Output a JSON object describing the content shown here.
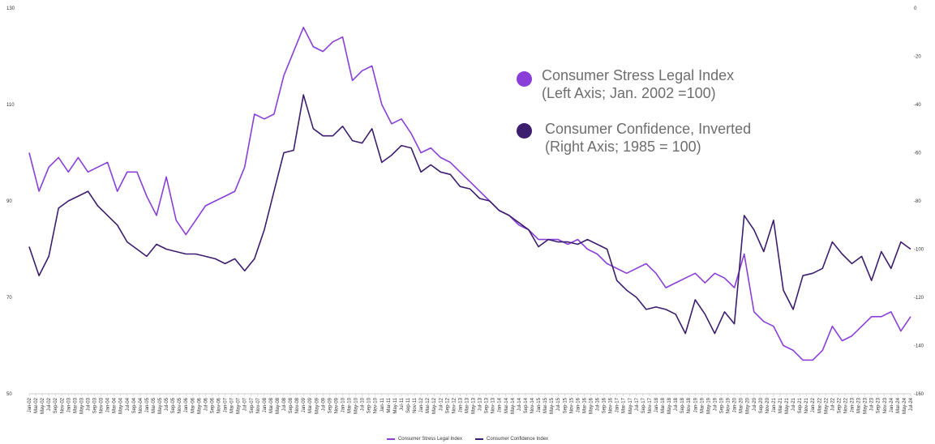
{
  "colors": {
    "stress": "#8a3fd9",
    "confidence": "#3d1d6e",
    "axis": "#333333"
  },
  "annotations": {
    "stress_line1": "Consumer Stress Legal Index",
    "stress_line2": "(Left Axis; Jan. 2002 =100)",
    "confidence_line1": "Consumer Confidence, Inverted",
    "confidence_line2": "(Right Axis; 1985 = 100)"
  },
  "legend": {
    "stress": "Consumer Stress Legal Index",
    "confidence": "Consumer Confidence Index"
  },
  "chart_data": {
    "type": "line",
    "x_start": "2002-01",
    "x_end": "2024-07",
    "x_tick_every_months": 2,
    "left_axis": {
      "min": 50,
      "max": 130,
      "ticks": [
        50,
        70,
        90,
        110,
        130
      ]
    },
    "right_axis": {
      "min": -160,
      "max": 0,
      "ticks": [
        -160,
        -140,
        -120,
        -100,
        -80,
        -60,
        -40,
        -20,
        0
      ],
      "inverted_series": true
    },
    "grid": false,
    "legend_position": "bottom",
    "series": [
      {
        "name": "Consumer Stress Legal Index",
        "axis": "left",
        "points": [
          [
            "2002-01",
            100
          ],
          [
            "2002-04",
            92
          ],
          [
            "2002-07",
            97
          ],
          [
            "2002-10",
            99
          ],
          [
            "2003-01",
            96
          ],
          [
            "2003-04",
            99
          ],
          [
            "2003-07",
            96
          ],
          [
            "2003-10",
            97
          ],
          [
            "2004-01",
            98
          ],
          [
            "2004-04",
            92
          ],
          [
            "2004-07",
            96
          ],
          [
            "2004-10",
            96
          ],
          [
            "2005-01",
            91
          ],
          [
            "2005-04",
            87
          ],
          [
            "2005-07",
            95
          ],
          [
            "2005-10",
            86
          ],
          [
            "2006-01",
            83
          ],
          [
            "2006-04",
            86
          ],
          [
            "2006-07",
            89
          ],
          [
            "2006-10",
            90
          ],
          [
            "2007-01",
            91
          ],
          [
            "2007-04",
            92
          ],
          [
            "2007-07",
            97
          ],
          [
            "2007-10",
            108
          ],
          [
            "2008-01",
            107
          ],
          [
            "2008-04",
            108
          ],
          [
            "2008-07",
            116
          ],
          [
            "2008-10",
            121
          ],
          [
            "2009-01",
            126
          ],
          [
            "2009-04",
            122
          ],
          [
            "2009-07",
            121
          ],
          [
            "2009-10",
            123
          ],
          [
            "2010-01",
            124
          ],
          [
            "2010-04",
            115
          ],
          [
            "2010-07",
            117
          ],
          [
            "2010-10",
            118
          ],
          [
            "2011-01",
            110
          ],
          [
            "2011-04",
            106
          ],
          [
            "2011-07",
            107
          ],
          [
            "2011-10",
            104
          ],
          [
            "2012-01",
            100
          ],
          [
            "2012-04",
            101
          ],
          [
            "2012-07",
            99
          ],
          [
            "2012-10",
            98
          ],
          [
            "2013-01",
            96
          ],
          [
            "2013-04",
            94
          ],
          [
            "2013-07",
            92
          ],
          [
            "2013-10",
            90
          ],
          [
            "2014-01",
            88
          ],
          [
            "2014-04",
            87
          ],
          [
            "2014-07",
            85
          ],
          [
            "2014-10",
            84
          ],
          [
            "2015-01",
            82
          ],
          [
            "2015-04",
            82
          ],
          [
            "2015-07",
            82
          ],
          [
            "2015-10",
            81
          ],
          [
            "2016-01",
            82
          ],
          [
            "2016-04",
            80
          ],
          [
            "2016-07",
            79
          ],
          [
            "2016-10",
            77
          ],
          [
            "2017-01",
            76
          ],
          [
            "2017-04",
            75
          ],
          [
            "2017-07",
            76
          ],
          [
            "2017-10",
            77
          ],
          [
            "2018-01",
            75
          ],
          [
            "2018-04",
            72
          ],
          [
            "2018-07",
            73
          ],
          [
            "2018-10",
            74
          ],
          [
            "2019-01",
            75
          ],
          [
            "2019-04",
            73
          ],
          [
            "2019-07",
            75
          ],
          [
            "2019-10",
            74
          ],
          [
            "2020-01",
            72
          ],
          [
            "2020-04",
            79
          ],
          [
            "2020-07",
            67
          ],
          [
            "2020-10",
            65
          ],
          [
            "2021-01",
            64
          ],
          [
            "2021-04",
            60
          ],
          [
            "2021-07",
            59
          ],
          [
            "2021-10",
            57
          ],
          [
            "2022-01",
            57
          ],
          [
            "2022-04",
            59
          ],
          [
            "2022-07",
            64
          ],
          [
            "2022-10",
            61
          ],
          [
            "2023-01",
            62
          ],
          [
            "2023-04",
            64
          ],
          [
            "2023-07",
            66
          ],
          [
            "2023-10",
            66
          ],
          [
            "2024-01",
            67
          ],
          [
            "2024-04",
            63
          ],
          [
            "2024-07",
            66
          ]
        ]
      },
      {
        "name": "Consumer Confidence Index",
        "axis": "right",
        "inverted": true,
        "points": [
          [
            "2002-01",
            99
          ],
          [
            "2002-04",
            111
          ],
          [
            "2002-07",
            103
          ],
          [
            "2002-10",
            83
          ],
          [
            "2003-01",
            80
          ],
          [
            "2003-04",
            78
          ],
          [
            "2003-07",
            76
          ],
          [
            "2003-10",
            82
          ],
          [
            "2004-01",
            86
          ],
          [
            "2004-04",
            90
          ],
          [
            "2004-07",
            97
          ],
          [
            "2004-10",
            100
          ],
          [
            "2005-01",
            103
          ],
          [
            "2005-04",
            98
          ],
          [
            "2005-07",
            100
          ],
          [
            "2005-10",
            101
          ],
          [
            "2006-01",
            102
          ],
          [
            "2006-04",
            102
          ],
          [
            "2006-07",
            103
          ],
          [
            "2006-10",
            104
          ],
          [
            "2007-01",
            106
          ],
          [
            "2007-04",
            104
          ],
          [
            "2007-07",
            109
          ],
          [
            "2007-10",
            104
          ],
          [
            "2008-01",
            92
          ],
          [
            "2008-04",
            76
          ],
          [
            "2008-07",
            60
          ],
          [
            "2008-10",
            59
          ],
          [
            "2009-01",
            36
          ],
          [
            "2009-04",
            50
          ],
          [
            "2009-07",
            53
          ],
          [
            "2009-10",
            53
          ],
          [
            "2010-01",
            49
          ],
          [
            "2010-04",
            55
          ],
          [
            "2010-07",
            56
          ],
          [
            "2010-10",
            50
          ],
          [
            "2011-01",
            64
          ],
          [
            "2011-04",
            61
          ],
          [
            "2011-07",
            57
          ],
          [
            "2011-10",
            58
          ],
          [
            "2012-01",
            68
          ],
          [
            "2012-04",
            65
          ],
          [
            "2012-07",
            68
          ],
          [
            "2012-10",
            69
          ],
          [
            "2013-01",
            74
          ],
          [
            "2013-04",
            75
          ],
          [
            "2013-07",
            79
          ],
          [
            "2013-10",
            80
          ],
          [
            "2014-01",
            84
          ],
          [
            "2014-04",
            86
          ],
          [
            "2014-07",
            89
          ],
          [
            "2014-10",
            92
          ],
          [
            "2015-01",
            99
          ],
          [
            "2015-04",
            96
          ],
          [
            "2015-07",
            97
          ],
          [
            "2015-10",
            97
          ],
          [
            "2016-01",
            98
          ],
          [
            "2016-04",
            96
          ],
          [
            "2016-07",
            98
          ],
          [
            "2016-10",
            100
          ],
          [
            "2017-01",
            113
          ],
          [
            "2017-04",
            117
          ],
          [
            "2017-07",
            120
          ],
          [
            "2017-10",
            125
          ],
          [
            "2018-01",
            124
          ],
          [
            "2018-04",
            125
          ],
          [
            "2018-07",
            127
          ],
          [
            "2018-10",
            135
          ],
          [
            "2019-01",
            121
          ],
          [
            "2019-04",
            127
          ],
          [
            "2019-07",
            135
          ],
          [
            "2019-10",
            126
          ],
          [
            "2020-01",
            131
          ],
          [
            "2020-04",
            86
          ],
          [
            "2020-07",
            92
          ],
          [
            "2020-10",
            101
          ],
          [
            "2021-01",
            88
          ],
          [
            "2021-04",
            117
          ],
          [
            "2021-07",
            125
          ],
          [
            "2021-10",
            111
          ],
          [
            "2022-01",
            110
          ],
          [
            "2022-04",
            108
          ],
          [
            "2022-07",
            97
          ],
          [
            "2022-10",
            102
          ],
          [
            "2023-01",
            106
          ],
          [
            "2023-04",
            103
          ],
          [
            "2023-07",
            113
          ],
          [
            "2023-10",
            101
          ],
          [
            "2024-01",
            108
          ],
          [
            "2024-04",
            97
          ],
          [
            "2024-07",
            100
          ]
        ]
      }
    ]
  }
}
